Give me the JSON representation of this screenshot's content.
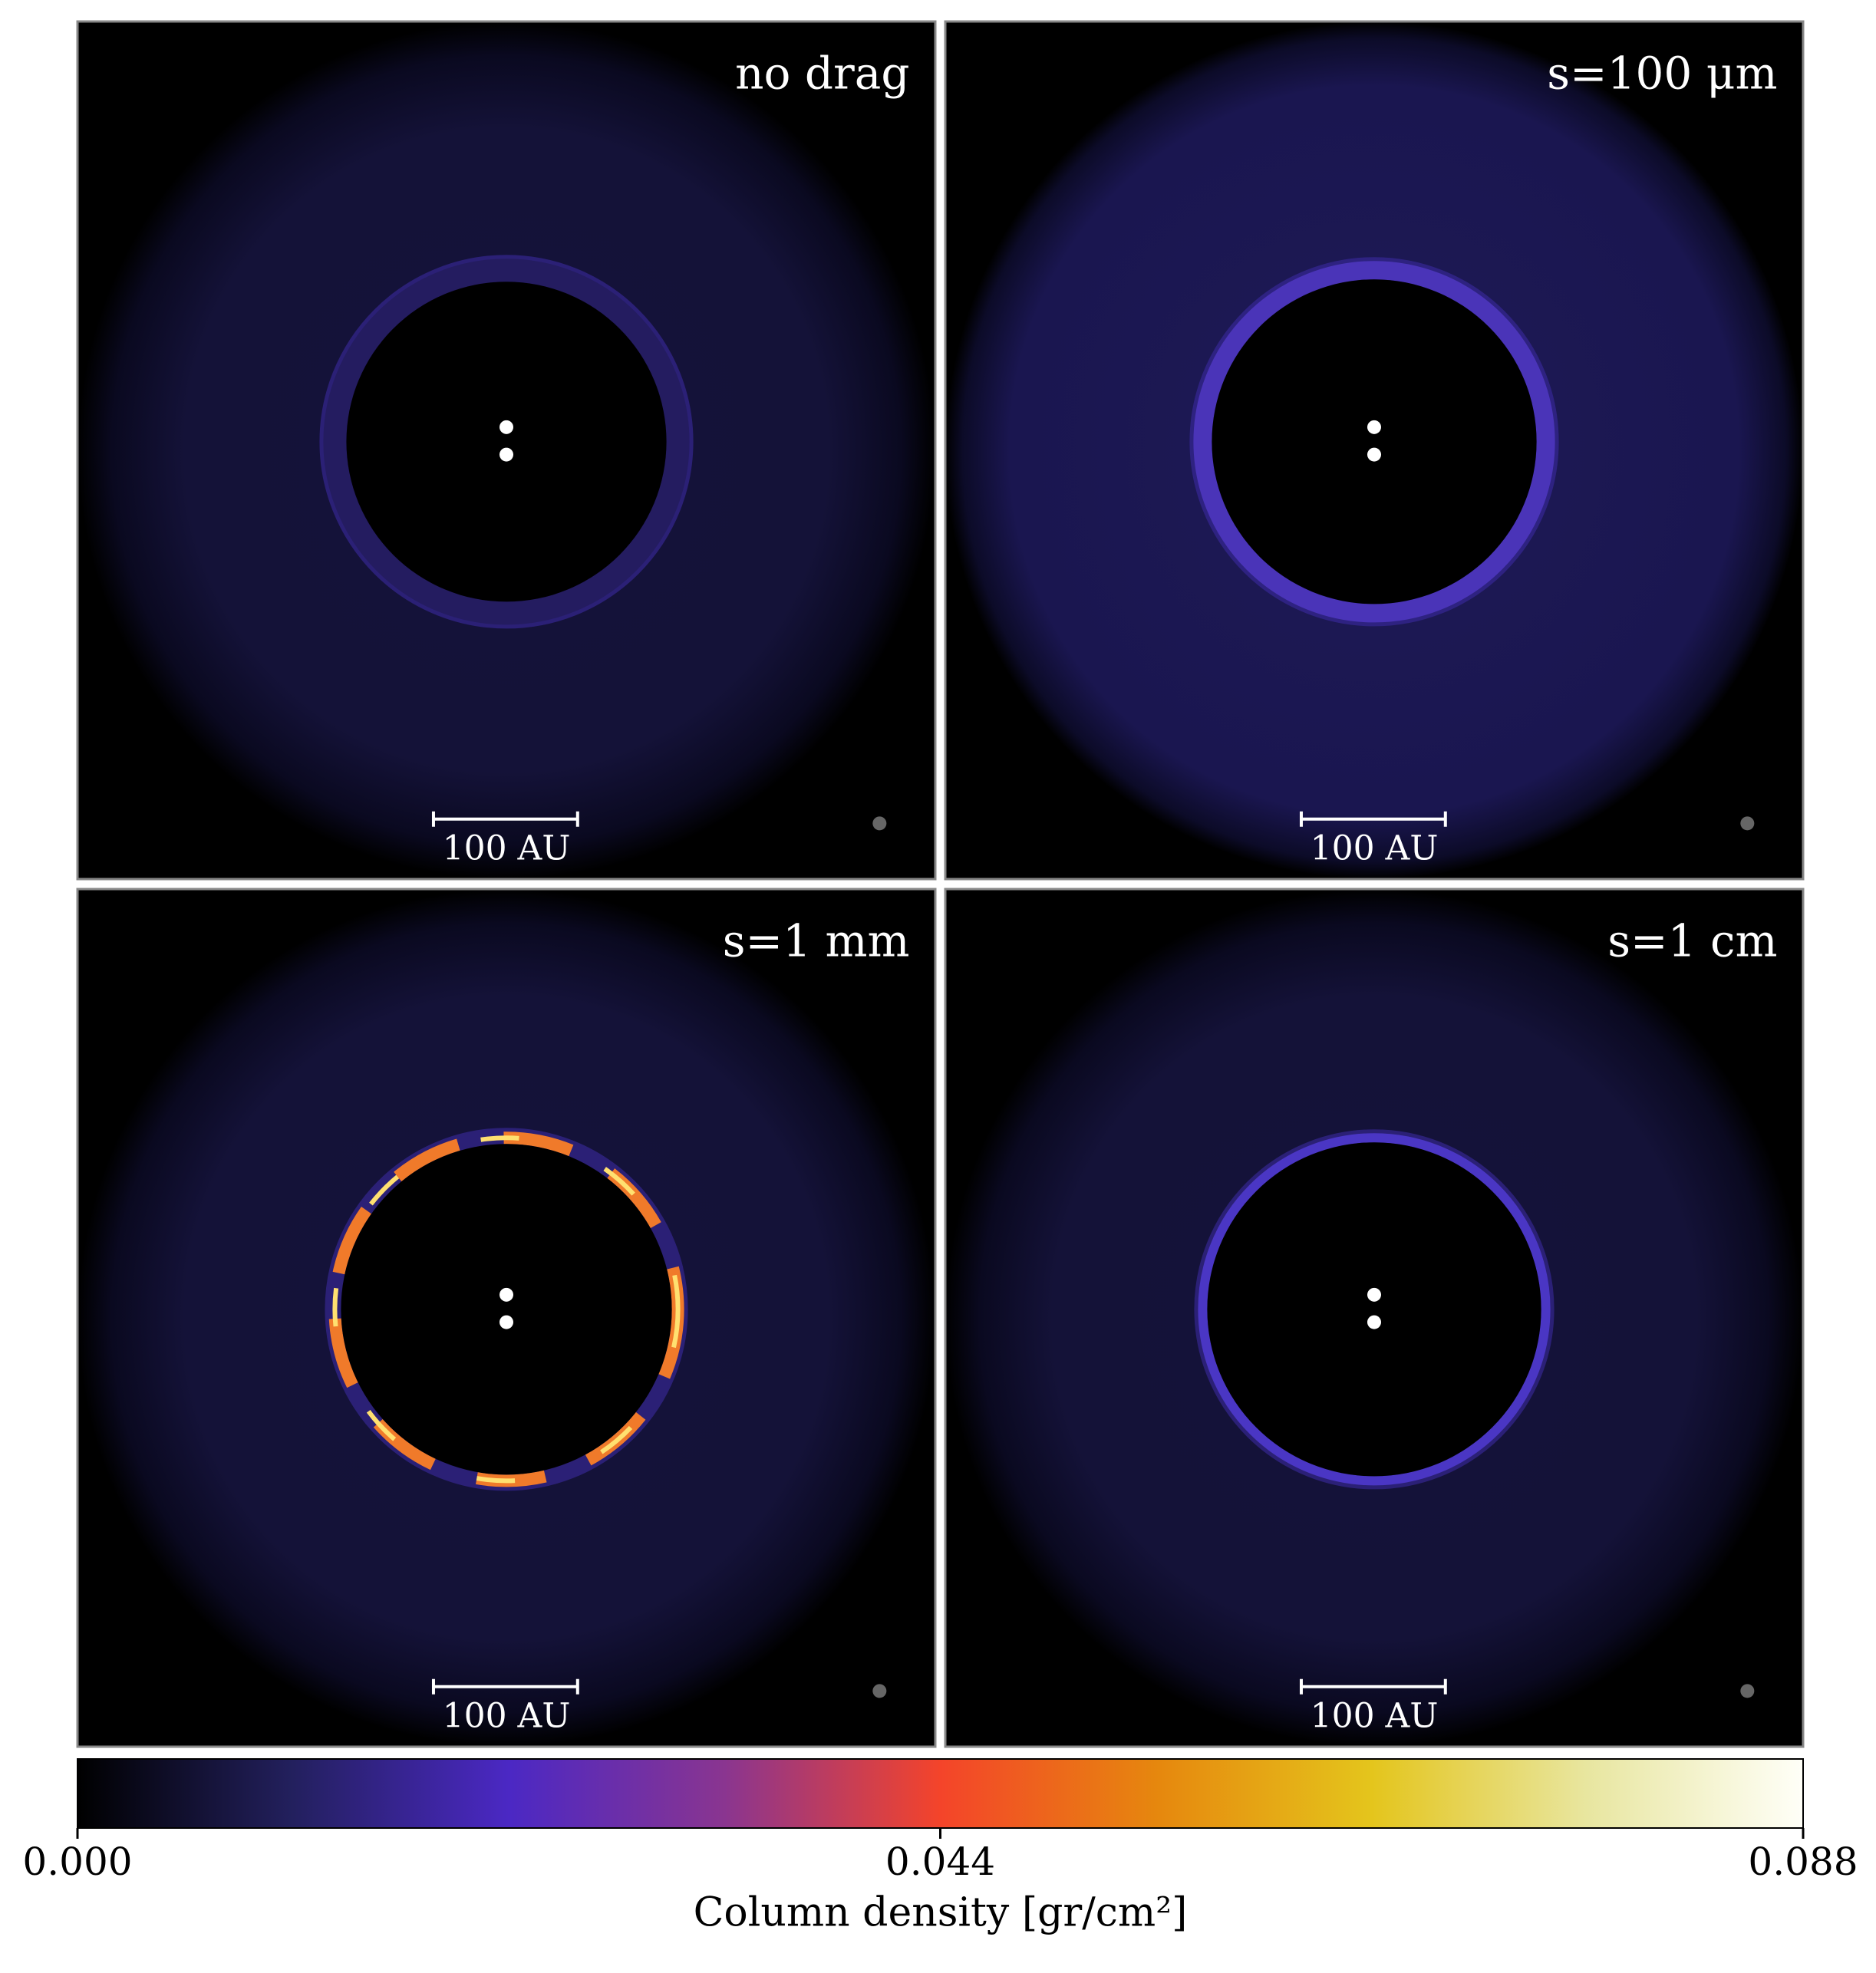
{
  "chart_data": {
    "type": "image-grid",
    "panels": [
      {
        "label": "no drag",
        "scalebar": "100 AU"
      },
      {
        "label": "s=100 μm",
        "scalebar": "100 AU"
      },
      {
        "label": "s=1 mm",
        "scalebar": "100 AU"
      },
      {
        "label": "s=1 cm",
        "scalebar": "100 AU"
      }
    ],
    "colorbar": {
      "label": "Column density [gr/cm²]",
      "lim": [
        0,
        0.088
      ],
      "ticks": [
        {
          "value": 0,
          "label": "0.000"
        },
        0.044,
        0.088
      ],
      "colors": [
        "#000000",
        "#23205e",
        "#4b28c4",
        "#8a3590",
        "#f4442a",
        "#e6870e",
        "#e4c51c",
        "#e8e6a0",
        "#fffff8"
      ]
    }
  }
}
